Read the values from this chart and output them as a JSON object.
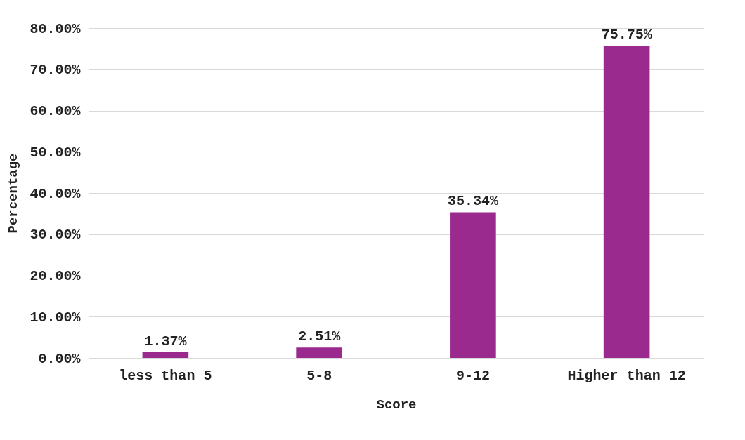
{
  "chart_data": {
    "type": "bar",
    "xlabel": "Score",
    "ylabel": "Percentage",
    "categories": [
      "less than 5",
      "5-8",
      "9-12",
      "Higher than 12"
    ],
    "values": [
      1.37,
      2.51,
      35.34,
      75.75
    ],
    "value_labels": [
      "1.37%",
      "2.51%",
      "35.34%",
      "75.75%"
    ],
    "color": "#9b2a8f",
    "ylim": [
      0,
      80
    ],
    "yticks": [
      {
        "value": 0,
        "label": "0.00%"
      },
      {
        "value": 10,
        "label": "10.00%"
      },
      {
        "value": 20,
        "label": "20.00%"
      },
      {
        "value": 30,
        "label": "30.00%"
      },
      {
        "value": 40,
        "label": "40.00%"
      },
      {
        "value": 50,
        "label": "50.00%"
      },
      {
        "value": 60,
        "label": "60.00%"
      },
      {
        "value": 70,
        "label": "70.00%"
      },
      {
        "value": 80,
        "label": "80.00%"
      }
    ],
    "grid": "y"
  }
}
